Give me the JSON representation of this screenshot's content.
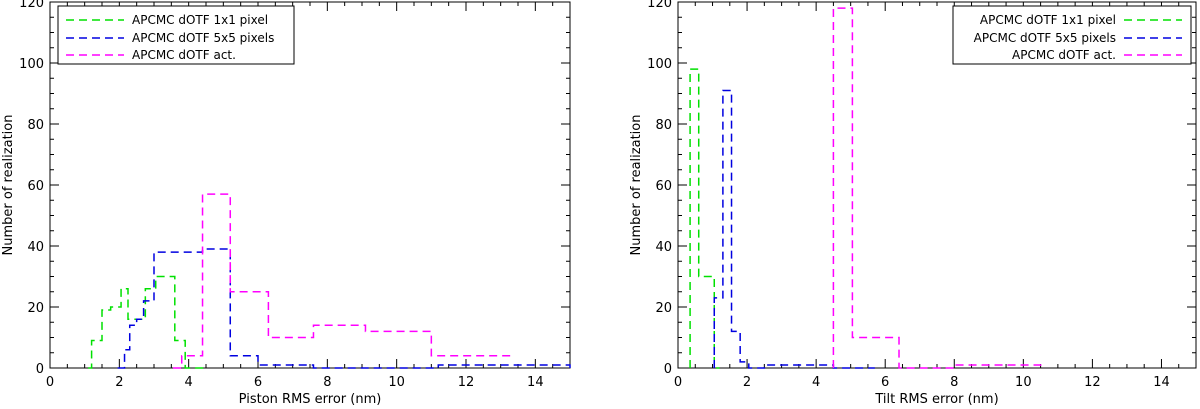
{
  "chart_data": [
    {
      "type": "line",
      "step": true,
      "xlabel": "Piston RMS error (nm)",
      "ylabel": "Number of realization",
      "xlim": [
        0,
        15
      ],
      "ylim": [
        0,
        120
      ],
      "xticks": [
        0,
        2,
        4,
        6,
        8,
        10,
        12,
        14
      ],
      "yticks": [
        0,
        20,
        40,
        60,
        80,
        100,
        120
      ],
      "legend_position": "top-left",
      "series": [
        {
          "name": "APCMC dOTF 1x1 pixel",
          "color": "#00e000",
          "x": [
            1.1,
            1.2,
            1.5,
            1.75,
            2.05,
            2.25,
            2.5,
            2.75,
            3.05,
            3.6,
            3.9,
            4.5
          ],
          "y": [
            0,
            9,
            19,
            20,
            26,
            16,
            16,
            26,
            30,
            9,
            0,
            0
          ]
        },
        {
          "name": "APCMC dOTF 5x5 pixels",
          "color": "#0000e0",
          "x": [
            1.95,
            2.15,
            2.3,
            2.5,
            2.7,
            3.0,
            3.5,
            4.4,
            5.2,
            6.0,
            7.6,
            8.5,
            10.8,
            11.2,
            13.3,
            15.0
          ],
          "y": [
            0,
            6,
            14,
            16,
            22,
            38,
            38,
            39,
            4,
            1,
            0,
            0,
            0,
            1,
            1,
            0
          ],
          "y_at_x": [
            6,
            14,
            16,
            22,
            38,
            38,
            39,
            4,
            1,
            0,
            1,
            0,
            1,
            1,
            0,
            0
          ]
        },
        {
          "name": "APCMC dOTF act.",
          "color": "#ff00ff",
          "x": [
            3.55,
            3.8,
            4.4,
            5.2,
            6.3,
            7.6,
            9.1,
            11.0,
            13.3
          ],
          "y": [
            0,
            4,
            57,
            25,
            10,
            14,
            12,
            4,
            4
          ]
        }
      ]
    },
    {
      "type": "line",
      "step": true,
      "xlabel": "Tilt RMS error (nm)",
      "ylabel": "Number of realization",
      "xlim": [
        0,
        15
      ],
      "ylim": [
        0,
        120
      ],
      "xticks": [
        0,
        2,
        4,
        6,
        8,
        10,
        12,
        14
      ],
      "yticks": [
        0,
        20,
        40,
        60,
        80,
        100,
        120
      ],
      "legend_position": "top-right",
      "series": [
        {
          "name": "APCMC dOTF 1x1 pixel",
          "color": "#00e000",
          "x": [
            0.35,
            0.6,
            1.05,
            1.2
          ],
          "y": [
            98,
            30,
            0,
            0
          ]
        },
        {
          "name": "APCMC dOTF 5x5 pixels",
          "color": "#0000e0",
          "x": [
            1.05,
            1.3,
            1.55,
            1.8,
            2.05,
            2.5,
            3.5,
            4.5,
            5.7
          ],
          "y": [
            23,
            91,
            12,
            2,
            0,
            1,
            1,
            0,
            0
          ]
        },
        {
          "name": "APCMC dOTF act.",
          "color": "#ff00ff",
          "x": [
            4.5,
            5.05,
            6.4,
            7.5,
            8.0,
            10.5
          ],
          "y": [
            118,
            10,
            0,
            0,
            1,
            0
          ]
        }
      ]
    }
  ]
}
